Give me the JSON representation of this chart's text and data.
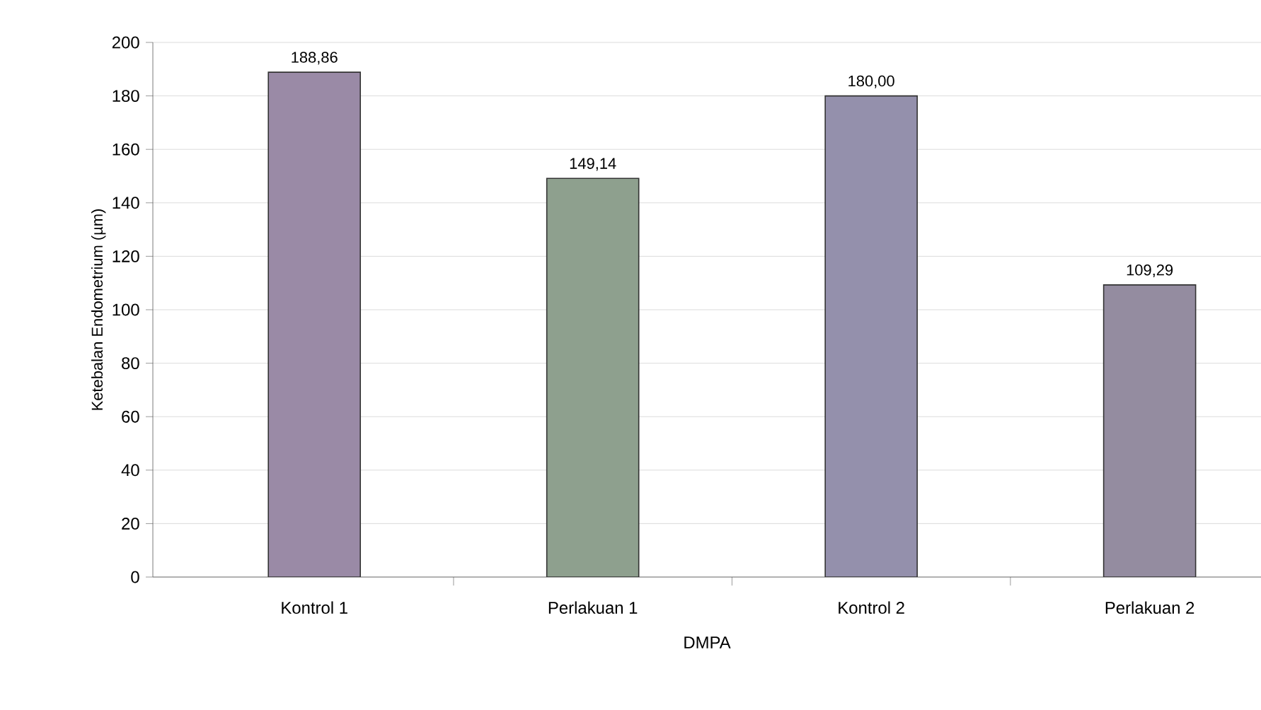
{
  "chart_data": {
    "type": "bar",
    "xlabel": "DMPA",
    "ylabel": "Ketebalan Endometrium (µm)",
    "categories": [
      "Kontrol 1",
      "Perlakuan 1",
      "Kontrol 2",
      "Perlakuan 2"
    ],
    "values": [
      188.86,
      149.14,
      180.0,
      109.29
    ],
    "value_labels": [
      "188,86",
      "149,14",
      "180,00",
      "109,29"
    ],
    "colors": [
      "#9a8aa6",
      "#8ea08e",
      "#9490ac",
      "#948ca0"
    ],
    "ylim": [
      0,
      200
    ],
    "yticks": [
      0,
      20,
      40,
      60,
      80,
      100,
      120,
      140,
      160,
      180,
      200
    ],
    "grid": "y"
  }
}
